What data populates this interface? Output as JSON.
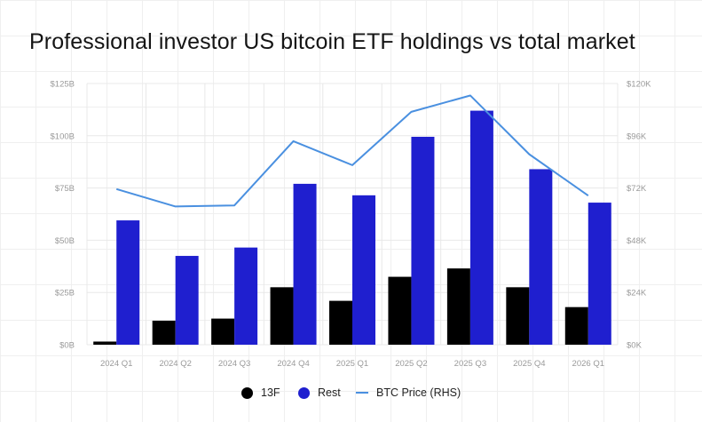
{
  "title": "Professional investor US bitcoin ETF holdings vs total market",
  "colors": {
    "f13": "#000000",
    "rest": "#1f1fcf",
    "btc": "#4a90e0",
    "grid": "#e8e8e8",
    "tick": "#9a9a9a"
  },
  "chart_data": {
    "type": "bar",
    "categories": [
      "2024 Q1",
      "2024 Q2",
      "2024 Q3",
      "2024 Q4",
      "2025 Q1",
      "2025 Q2",
      "2025 Q3",
      "2025 Q4",
      "2026 Q1"
    ],
    "series": [
      {
        "name": "13F",
        "kind": "bar",
        "axis": "left",
        "values": [
          1.5,
          11.5,
          12.5,
          27.5,
          21,
          32.5,
          36.5,
          27.5,
          18
        ]
      },
      {
        "name": "Rest",
        "kind": "bar",
        "axis": "left",
        "values": [
          59.5,
          42.5,
          46.5,
          77,
          71.5,
          99.5,
          112,
          84,
          68
        ]
      },
      {
        "name": "BTC Price (RHS)",
        "kind": "line",
        "axis": "right",
        "values": [
          71500,
          63500,
          64000,
          93500,
          82500,
          107000,
          114500,
          87500,
          68500
        ]
      }
    ],
    "left_axis": {
      "min": 0,
      "max": 125,
      "ticks": [
        0,
        25,
        50,
        75,
        100,
        125
      ],
      "tick_labels": [
        "$0B",
        "$25B",
        "$50B",
        "$75B",
        "$100B",
        "$125B"
      ]
    },
    "right_axis": {
      "min": 0,
      "max": 120000,
      "ticks": [
        0,
        24000,
        48000,
        72000,
        96000,
        120000
      ],
      "tick_labels": [
        "$0K",
        "$24K",
        "$48K",
        "$72K",
        "$96K",
        "$120K"
      ]
    },
    "grid": true,
    "legend_position": "bottom-center"
  },
  "legend": [
    {
      "label": "13F",
      "shape": "dot",
      "color": "#000000"
    },
    {
      "label": "Rest",
      "shape": "dot",
      "color": "#1f1fcf"
    },
    {
      "label": "BTC Price (RHS)",
      "shape": "line",
      "color": "#4a90e0"
    }
  ]
}
